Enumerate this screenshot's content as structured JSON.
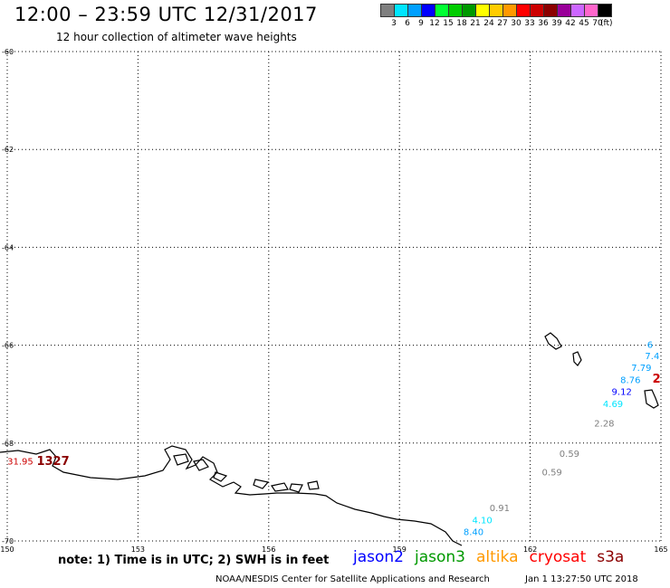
{
  "header": {
    "title": "12:00 – 23:59 UTC 12/31/2017",
    "subtitle": "12 hour collection of altimeter wave heights"
  },
  "color_scale": {
    "unit": "(ft)",
    "bins": [
      {
        "label": "3",
        "color": "#7f7f7f"
      },
      {
        "label": "6",
        "color": "#00e5ff"
      },
      {
        "label": "9",
        "color": "#00a0ff"
      },
      {
        "label": "12",
        "color": "#0000ff"
      },
      {
        "label": "15",
        "color": "#00ff33"
      },
      {
        "label": "18",
        "color": "#00cc00"
      },
      {
        "label": "21",
        "color": "#009900"
      },
      {
        "label": "24",
        "color": "#ffff00"
      },
      {
        "label": "27",
        "color": "#ffcc00"
      },
      {
        "label": "30",
        "color": "#ff9900"
      },
      {
        "label": "33",
        "color": "#ff0000"
      },
      {
        "label": "36",
        "color": "#cc0000"
      },
      {
        "label": "39",
        "color": "#8b0000"
      },
      {
        "label": "42",
        "color": "#990099"
      },
      {
        "label": "45",
        "color": "#cc66ff"
      },
      {
        "label": "70",
        "color": "#ff66cc"
      },
      {
        "label": "",
        "color": "#000000"
      }
    ]
  },
  "map": {
    "lon_range": [
      150,
      165
    ],
    "lat_range": [
      -60,
      -70
    ],
    "lat_labels": [
      "-60",
      "-62",
      "-64",
      "-66",
      "-68",
      "-70"
    ],
    "lon_labels": [
      "150",
      "153",
      "156",
      "159",
      "162",
      "165"
    ],
    "observations": [
      {
        "lon": 150.3,
        "lat": -68.38,
        "text": "31.95",
        "color": "#cc0000"
      },
      {
        "lon": 151.05,
        "lat": -68.38,
        "text": "1327",
        "color": "#8b0000",
        "bold": true
      },
      {
        "lon": 164.75,
        "lat": -66.0,
        "text": "6",
        "color": "#00a0ff"
      },
      {
        "lon": 164.8,
        "lat": -66.23,
        "text": "7.4",
        "color": "#00a0ff"
      },
      {
        "lon": 164.55,
        "lat": -66.47,
        "text": "7.79",
        "color": "#00a0ff"
      },
      {
        "lon": 164.9,
        "lat": -66.7,
        "text": "2",
        "color": "#cc0000",
        "bold": true
      },
      {
        "lon": 164.3,
        "lat": -66.72,
        "text": "8.76",
        "color": "#00a0ff"
      },
      {
        "lon": 164.1,
        "lat": -66.96,
        "text": "9.12",
        "color": "#0000ff"
      },
      {
        "lon": 163.9,
        "lat": -67.21,
        "text": "4.69",
        "color": "#00e5ff"
      },
      {
        "lon": 163.7,
        "lat": -67.61,
        "text": "2.28",
        "color": "#7f7f7f"
      },
      {
        "lon": 162.9,
        "lat": -68.23,
        "text": "0.59",
        "color": "#7f7f7f"
      },
      {
        "lon": 162.5,
        "lat": -68.6,
        "text": "0.59",
        "color": "#7f7f7f"
      },
      {
        "lon": 161.3,
        "lat": -69.33,
        "text": "0.91",
        "color": "#7f7f7f"
      },
      {
        "lon": 160.9,
        "lat": -69.58,
        "text": "4.10",
        "color": "#00e5ff"
      },
      {
        "lon": 160.7,
        "lat": -69.82,
        "text": "8.40",
        "color": "#00a0ff"
      }
    ]
  },
  "footer": {
    "note": "note: 1) Time is in UTC; 2) SWH is in feet",
    "missions": [
      {
        "name": "jason2",
        "color": "#0000ff"
      },
      {
        "name": "jason3",
        "color": "#009900"
      },
      {
        "name": "altika",
        "color": "#ff9900"
      },
      {
        "name": "cryosat",
        "color": "#ff0000"
      },
      {
        "name": "s3a",
        "color": "#8b0000"
      }
    ],
    "credit": "NOAA/NESDIS Center for Satellite Applications and Research",
    "timestamp": "Jan  1 13:27:50 UTC 2018"
  }
}
